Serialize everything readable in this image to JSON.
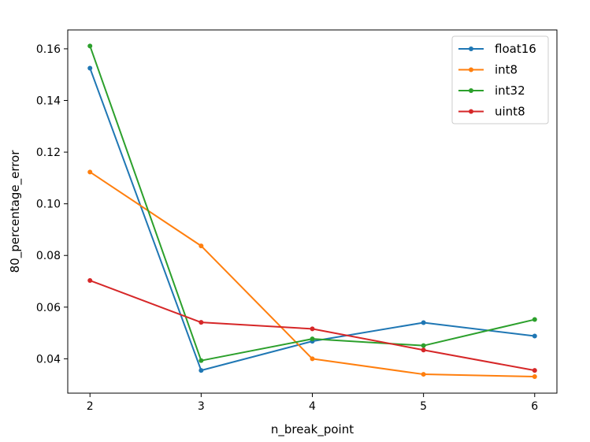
{
  "chart_data": {
    "type": "line",
    "title": "",
    "xlabel": "n_break_point",
    "ylabel": "80_percentage_error",
    "x": [
      2,
      3,
      4,
      5,
      6
    ],
    "xticks": [
      "2",
      "3",
      "4",
      "5",
      "6"
    ],
    "xlim": [
      1.8,
      6.2
    ],
    "yticks": [
      "0.04",
      "0.06",
      "0.08",
      "0.10",
      "0.12",
      "0.14",
      "0.16"
    ],
    "ytick_values": [
      0.04,
      0.06,
      0.08,
      0.1,
      0.12,
      0.14,
      0.16
    ],
    "ylim": [
      0.0267,
      0.1673
    ],
    "grid": false,
    "legend_position": "top-right",
    "series": [
      {
        "name": "float16",
        "color": "#1f77b4",
        "values": [
          0.1525,
          0.0355,
          0.0468,
          0.054,
          0.0488
        ]
      },
      {
        "name": "int8",
        "color": "#ff7f0e",
        "values": [
          0.1123,
          0.0837,
          0.04,
          0.034,
          0.0331
        ]
      },
      {
        "name": "int32",
        "color": "#2ca02c",
        "values": [
          0.1611,
          0.0393,
          0.0477,
          0.0451,
          0.0552
        ]
      },
      {
        "name": "uint8",
        "color": "#d62728",
        "values": [
          0.0703,
          0.0541,
          0.0516,
          0.0434,
          0.0355
        ]
      }
    ]
  }
}
